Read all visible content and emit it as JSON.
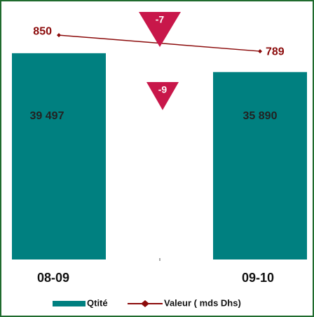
{
  "chart_data": {
    "type": "bar-line",
    "categories": [
      "08-09",
      "09-10"
    ],
    "series": [
      {
        "name": "Qtité",
        "type": "bar",
        "color": "#008080",
        "values": [
          39497,
          35890
        ],
        "value_labels": [
          "39 497",
          "35 890"
        ]
      },
      {
        "name": "Valeur ( mds Dhs)",
        "type": "line",
        "axis": "y2",
        "color": "#8b0a0a",
        "values": [
          850,
          789
        ]
      }
    ],
    "annotations": [
      "-7",
      "-9"
    ],
    "annotation_color": "#c8174a",
    "ylim": [
      0,
      47000
    ],
    "y2lim": [
      0,
      930
    ],
    "legend": "bottom"
  }
}
